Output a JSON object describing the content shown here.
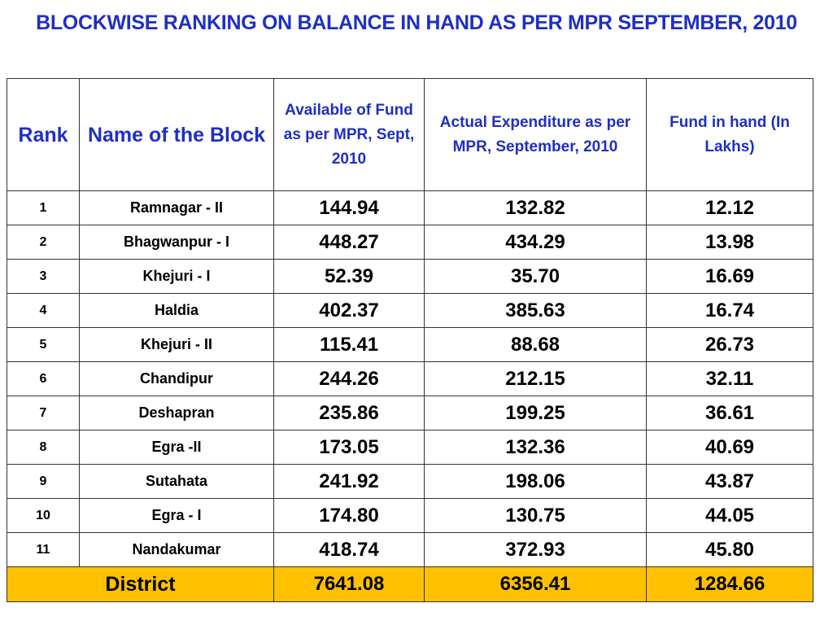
{
  "title": "BLOCKWISE RANKING ON BALANCE IN HAND AS PER MPR SEPTEMBER, 2010",
  "headers": {
    "rank": "Rank",
    "block": "Name of the Block",
    "available": "Available of Fund as per MPR, Sept, 2010",
    "expenditure": "Actual Expenditure as per MPR, September, 2010",
    "fund_in_hand": "Fund in hand (In Lakhs)"
  },
  "rows": [
    {
      "rank": "1",
      "block": "Ramnagar - II",
      "available": "144.94",
      "expenditure": "132.82",
      "fund_in_hand": "12.12"
    },
    {
      "rank": "2",
      "block": "Bhagwanpur - I",
      "available": "448.27",
      "expenditure": "434.29",
      "fund_in_hand": "13.98"
    },
    {
      "rank": "3",
      "block": "Khejuri - I",
      "available": "52.39",
      "expenditure": "35.70",
      "fund_in_hand": "16.69"
    },
    {
      "rank": "4",
      "block": "Haldia",
      "available": "402.37",
      "expenditure": "385.63",
      "fund_in_hand": "16.74"
    },
    {
      "rank": "5",
      "block": "Khejuri - II",
      "available": "115.41",
      "expenditure": "88.68",
      "fund_in_hand": "26.73"
    },
    {
      "rank": "6",
      "block": "Chandipur",
      "available": "244.26",
      "expenditure": "212.15",
      "fund_in_hand": "32.11"
    },
    {
      "rank": "7",
      "block": "Deshapran",
      "available": "235.86",
      "expenditure": "199.25",
      "fund_in_hand": "36.61"
    },
    {
      "rank": "8",
      "block": "Egra -II",
      "available": "173.05",
      "expenditure": "132.36",
      "fund_in_hand": "40.69"
    },
    {
      "rank": "9",
      "block": "Sutahata",
      "available": "241.92",
      "expenditure": "198.06",
      "fund_in_hand": "43.87"
    },
    {
      "rank": "10",
      "block": "Egra - I",
      "available": "174.80",
      "expenditure": "130.75",
      "fund_in_hand": "44.05"
    },
    {
      "rank": "11",
      "block": "Nandakumar",
      "available": "418.74",
      "expenditure": "372.93",
      "fund_in_hand": "45.80"
    }
  ],
  "total": {
    "label": "District",
    "available": "7641.08",
    "expenditure": "6356.41",
    "fund_in_hand": "1284.66"
  },
  "colors": {
    "heading_blue": "#1f2fc4",
    "total_row_fill": "#ffc000"
  }
}
